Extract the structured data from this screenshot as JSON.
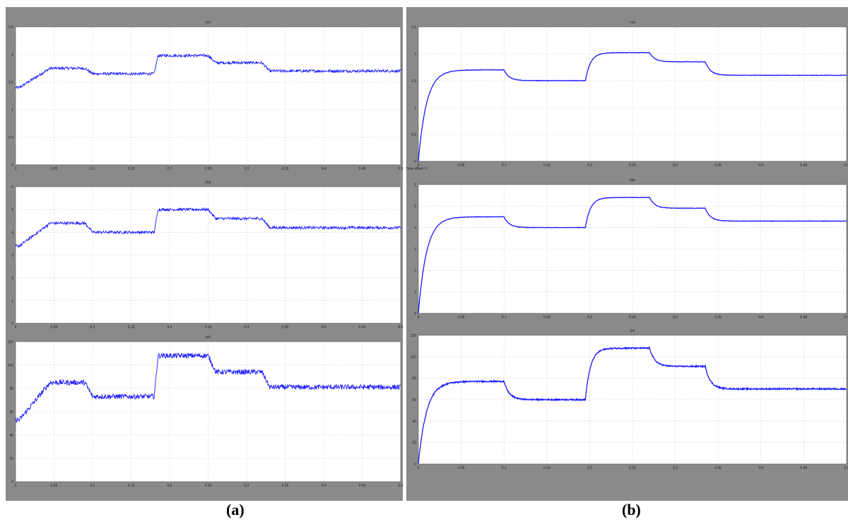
{
  "captions": {
    "a": "(a)",
    "b": "(b)"
  },
  "colors": {
    "trace": "#1a1aff",
    "frame": "#8a8a8a",
    "plot_bg": "#ffffff",
    "grid": "#cfcfcf"
  },
  "chart_data": [
    {
      "type": "line",
      "figure": "a",
      "title": "pvi",
      "xlim": [
        0,
        0.5
      ],
      "ylim": [
        0,
        2.5
      ],
      "xticks": [
        "0",
        "0.05",
        "0.1",
        "0.15",
        "0.2",
        "0.25",
        "0.3",
        "0.35",
        "0.4",
        "0.45",
        "0.5"
      ],
      "yticks": [
        "0",
        "0.5",
        "1",
        "1.5",
        "2",
        "2.5"
      ],
      "grid": true,
      "noise": 0.025,
      "series": [
        {
          "x": [
            0,
            0.005,
            0.045,
            0.09,
            0.1,
            0.18,
            0.185,
            0.25,
            0.26,
            0.32,
            0.33,
            0.5
          ],
          "y": [
            1.4,
            1.4,
            1.75,
            1.75,
            1.65,
            1.65,
            1.98,
            1.98,
            1.85,
            1.85,
            1.7,
            1.7
          ]
        }
      ]
    },
    {
      "type": "line",
      "figure": "a",
      "title": "vbp",
      "xlim": [
        0,
        0.5
      ],
      "ylim": [
        0,
        6
      ],
      "xticks": [
        "0",
        "0.05",
        "0.1",
        "0.15",
        "0.2",
        "0.25",
        "0.3",
        "0.35",
        "0.4",
        "0.45",
        "0.5"
      ],
      "yticks": [
        "0",
        "1",
        "2",
        "3",
        "4",
        "5",
        "6"
      ],
      "grid": true,
      "noise": 0.06,
      "series": [
        {
          "x": [
            0,
            0.005,
            0.045,
            0.09,
            0.1,
            0.18,
            0.185,
            0.25,
            0.26,
            0.32,
            0.33,
            0.5
          ],
          "y": [
            3.4,
            3.4,
            4.4,
            4.4,
            4.0,
            4.0,
            5.0,
            5.0,
            4.6,
            4.6,
            4.2,
            4.2
          ]
        }
      ]
    },
    {
      "type": "line",
      "figure": "a",
      "title": "pvi",
      "xlim": [
        0,
        0.5
      ],
      "ylim": [
        0,
        120
      ],
      "xticks": [
        "0",
        "0.05",
        "0.1",
        "0.15",
        "0.2",
        "0.25",
        "0.3",
        "0.35",
        "0.4",
        "0.45",
        "0.5"
      ],
      "yticks": [
        "0",
        "20",
        "40",
        "60",
        "80",
        "100",
        "120"
      ],
      "grid": true,
      "noise": 2.2,
      "series": [
        {
          "x": [
            0,
            0.005,
            0.045,
            0.09,
            0.1,
            0.18,
            0.185,
            0.25,
            0.26,
            0.32,
            0.33,
            0.5
          ],
          "y": [
            53,
            53,
            85,
            85,
            73,
            73,
            108,
            108,
            94,
            94,
            81,
            81
          ]
        }
      ]
    },
    {
      "type": "line",
      "figure": "b",
      "title": "curt",
      "xlim": [
        0,
        0.5
      ],
      "ylim": [
        0,
        2.5
      ],
      "xticks": [
        "0",
        "0.05",
        "0.1",
        "0.15",
        "0.2",
        "0.25",
        "0.3",
        "0.35",
        "0.4",
        "0.45",
        "0.5"
      ],
      "yticks": [
        "0",
        "0.5",
        "1",
        "1.5",
        "2",
        "2.5"
      ],
      "grid": true,
      "xlabel": "Time offset: 0",
      "noise": 0.004,
      "series": [
        {
          "step_times": [
            0,
            0.1,
            0.195,
            0.27,
            0.335
          ],
          "levels": [
            1.7,
            1.5,
            2.02,
            1.85,
            1.6
          ]
        }
      ]
    },
    {
      "type": "line",
      "figure": "b",
      "title": "vbp",
      "xlim": [
        0,
        0.5
      ],
      "ylim": [
        0,
        6
      ],
      "xticks": [
        "0",
        "0.05",
        "0.1",
        "0.15",
        "0.2",
        "0.25",
        "0.3",
        "0.35",
        "0.4",
        "0.45",
        "0.5"
      ],
      "yticks": [
        "0",
        "1",
        "2",
        "3",
        "4",
        "5",
        "6"
      ],
      "grid": true,
      "noise": 0.01,
      "series": [
        {
          "step_times": [
            0,
            0.1,
            0.195,
            0.27,
            0.335
          ],
          "levels": [
            4.5,
            4.0,
            5.4,
            4.9,
            4.3
          ]
        }
      ]
    },
    {
      "type": "line",
      "figure": "b",
      "title": "pvi",
      "xlim": [
        0,
        0.5
      ],
      "ylim": [
        0,
        120
      ],
      "xticks": [
        "0",
        "0.05",
        "0.1",
        "0.15",
        "0.2",
        "0.25",
        "0.3",
        "0.35",
        "0.4",
        "0.45",
        "0.5"
      ],
      "yticks": [
        "0",
        "20",
        "40",
        "60",
        "80",
        "100",
        "120"
      ],
      "grid": true,
      "noise": 0.6,
      "series": [
        {
          "step_times": [
            0,
            0.1,
            0.195,
            0.27,
            0.335
          ],
          "levels": [
            77,
            60,
            108,
            91,
            70
          ]
        }
      ]
    }
  ]
}
